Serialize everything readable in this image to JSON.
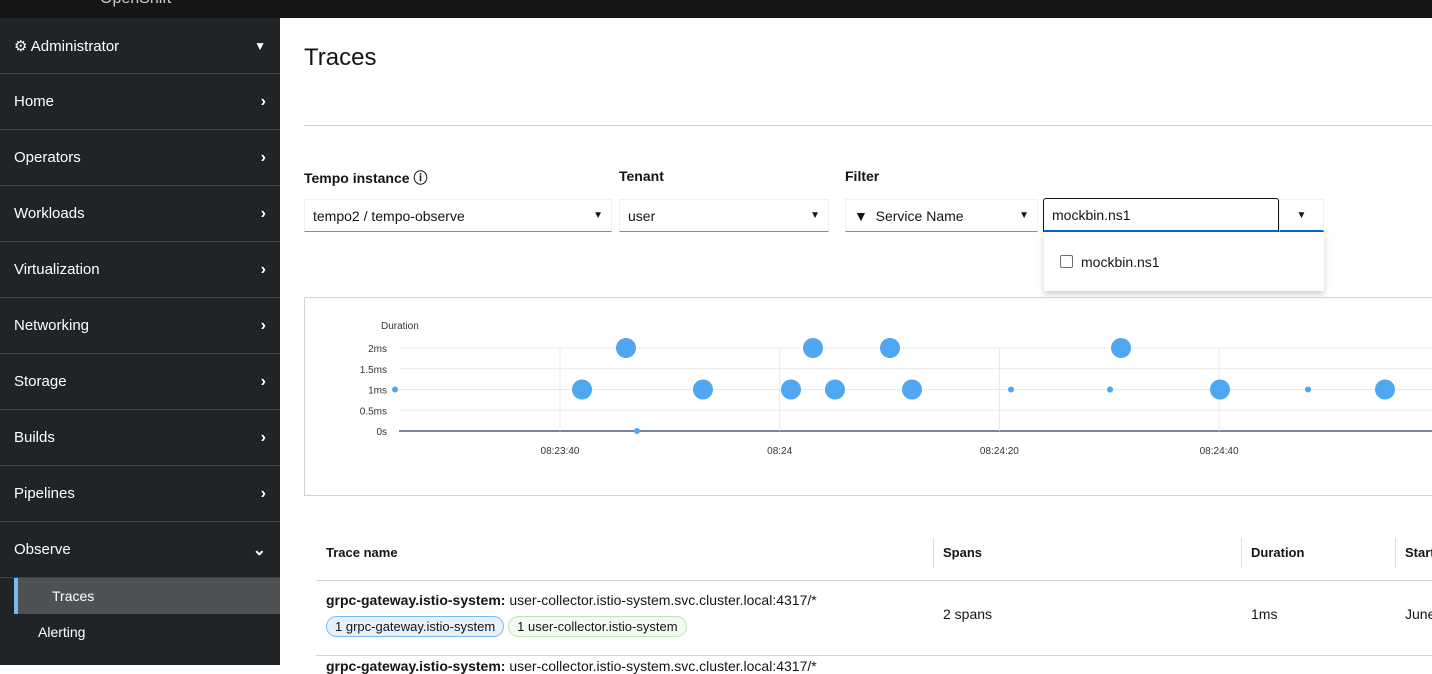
{
  "topbar": {
    "brand": "OpenShift"
  },
  "sidebar": {
    "perspective": "Administrator",
    "items": [
      {
        "label": "Home"
      },
      {
        "label": "Operators"
      },
      {
        "label": "Workloads"
      },
      {
        "label": "Virtualization"
      },
      {
        "label": "Networking"
      },
      {
        "label": "Storage"
      },
      {
        "label": "Builds"
      },
      {
        "label": "Pipelines"
      },
      {
        "label": "Observe",
        "expanded": true
      }
    ],
    "observe_children": [
      {
        "label": "Traces",
        "active": true
      },
      {
        "label": "Alerting"
      }
    ]
  },
  "page": {
    "title": "Traces"
  },
  "filters": {
    "tempo_label": "Tempo instance",
    "tempo_value": "tempo2 / tempo-observe",
    "tenant_label": "Tenant",
    "tenant_value": "user",
    "filter_label": "Filter",
    "filter_attr": "Service Name",
    "filter_input": "mockbin.ns1",
    "options": [
      {
        "label": "mockbin.ns1",
        "checked": false
      }
    ]
  },
  "chart_data": {
    "type": "scatter",
    "ylabel": "Duration",
    "y_ticks": [
      "0s",
      "0.5ms",
      "1ms",
      "1.5ms",
      "2ms"
    ],
    "x_ticks": [
      "08:23:40",
      "08:24",
      "08:24:20",
      "08:24:40"
    ],
    "ylim_ms": [
      0,
      2
    ],
    "grid": true,
    "color": "#4ea7f0",
    "points": [
      {
        "t": "08:23:25",
        "ms": 1,
        "spans": 1
      },
      {
        "t": "08:23:42",
        "ms": 1,
        "spans": 2
      },
      {
        "t": "08:23:46",
        "ms": 2,
        "spans": 2
      },
      {
        "t": "08:23:47",
        "ms": 0,
        "spans": 1
      },
      {
        "t": "08:23:53",
        "ms": 1,
        "spans": 2
      },
      {
        "t": "08:24:01",
        "ms": 1,
        "spans": 2
      },
      {
        "t": "08:24:03",
        "ms": 2,
        "spans": 2
      },
      {
        "t": "08:24:05",
        "ms": 1,
        "spans": 2
      },
      {
        "t": "08:24:10",
        "ms": 2,
        "spans": 2
      },
      {
        "t": "08:24:12",
        "ms": 1,
        "spans": 2
      },
      {
        "t": "08:24:21",
        "ms": 1,
        "spans": 1
      },
      {
        "t": "08:24:30",
        "ms": 1,
        "spans": 1
      },
      {
        "t": "08:24:30",
        "ms": 1,
        "spans": 1
      },
      {
        "t": "08:24:31",
        "ms": 2,
        "spans": 2
      },
      {
        "t": "08:24:40",
        "ms": 1,
        "spans": 2
      },
      {
        "t": "08:24:48",
        "ms": 1,
        "spans": 1
      },
      {
        "t": "08:24:55",
        "ms": 1,
        "spans": 2
      }
    ]
  },
  "table": {
    "headers": [
      "Trace name",
      "Spans",
      "Duration",
      "Start"
    ],
    "rows": [
      {
        "service": "grpc-gateway.istio-system:",
        "operation": "user-collector.istio-system.svc.cluster.local:4317/*",
        "badges": [
          {
            "label": "1 grpc-gateway.istio-system",
            "color": "#e7f1fa"
          },
          {
            "label": "1 user-collector.istio-system",
            "color": "#f3faf2"
          }
        ],
        "spans": "2 spans",
        "duration": "1ms",
        "start": "June"
      },
      {
        "service": "grpc-gateway.istio-system:",
        "operation": "user-collector.istio-system.svc.cluster.local:4317/*"
      }
    ]
  }
}
